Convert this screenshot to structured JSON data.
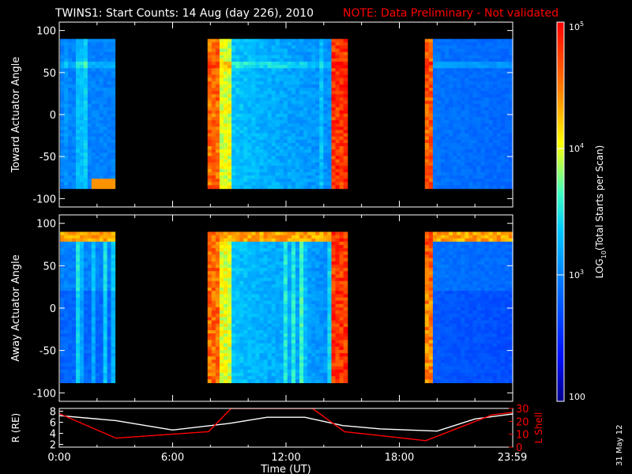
{
  "header": {
    "title": "TWINS1: Start Counts: 14 Aug (day 226), 2010",
    "note": "NOTE: Data Preliminary - Not validated",
    "note_color": "#ff0000",
    "date_stamp": "31 May 12"
  },
  "chart_data": [
    {
      "type": "heatmap",
      "ylabel": "Toward Actuator Angle",
      "ylim": [
        -110,
        110
      ],
      "yticks": [
        100,
        50,
        0,
        -50,
        -100
      ],
      "xlim": [
        0,
        24
      ],
      "z_log_range": [
        2,
        5
      ],
      "data_intervals_hours": [
        [
          0.05,
          2.95
        ],
        [
          7.85,
          15.25
        ],
        [
          19.35,
          24.0
        ]
      ],
      "angle_range": [
        -88,
        90
      ]
    },
    {
      "type": "heatmap",
      "ylabel": "Away Actuator Angle",
      "ylim": [
        -110,
        110
      ],
      "yticks": [
        100,
        50,
        0,
        -50,
        -100
      ],
      "xlim": [
        0,
        24
      ],
      "z_log_range": [
        2,
        5
      ],
      "data_intervals_hours": [
        [
          0.05,
          2.95
        ],
        [
          7.85,
          15.25
        ],
        [
          19.35,
          24.0
        ]
      ],
      "angle_range": [
        -88,
        90
      ]
    },
    {
      "type": "line",
      "ylabel": "R (RE)",
      "ylabel_right": "L Shell",
      "ylabel_right_color": "#ff0000",
      "yticks_left": [
        "8",
        "6",
        "4",
        "2"
      ],
      "yticks_right": [
        "30",
        "20",
        "10",
        "0"
      ],
      "ylim_left": [
        1.5,
        8.5
      ],
      "ylim_right": [
        0,
        30
      ],
      "xlabel": "Time (UT)",
      "xticks": [
        "0:00",
        "6:00",
        "12:00",
        "18:00",
        "23:59"
      ],
      "xtick_hours": [
        0,
        6,
        12,
        18,
        23.98
      ],
      "series": [
        {
          "axis": "left",
          "color": "#ffffff",
          "x": [
            0,
            3,
            6,
            9,
            11,
            13,
            15,
            17,
            20,
            22,
            24
          ],
          "y": [
            7.2,
            6.3,
            4.6,
            5.8,
            6.9,
            6.9,
            5.4,
            4.8,
            4.4,
            6.6,
            7.5
          ]
        },
        {
          "axis": "right",
          "color": "#ff0000",
          "x": [
            0,
            3,
            7.9,
            9.1,
            12,
            13.4,
            15.1,
            19.4,
            22.9,
            24
          ],
          "y": [
            26,
            7,
            12,
            30,
            30,
            30,
            12,
            5,
            25,
            27
          ]
        }
      ]
    }
  ],
  "colorbar": {
    "label": "LOG10(Total Starts per Scan)",
    "ticks": [
      {
        "label": "10",
        "exp": "5",
        "value": 5
      },
      {
        "label": "10",
        "exp": "4",
        "value": 4
      },
      {
        "label": "10",
        "exp": "3",
        "value": 3
      },
      {
        "label": "100",
        "exp": "",
        "value": 2
      }
    ]
  }
}
